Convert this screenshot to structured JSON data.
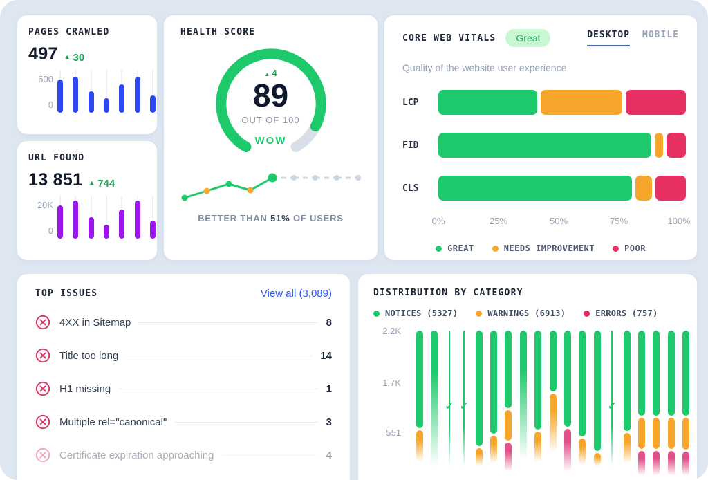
{
  "colors": {
    "green": "#1ec96b",
    "green_dark": "#1d9e55",
    "orange": "#f6a62b",
    "pink": "#e73062",
    "pink_soft": "#e0518a",
    "blue_bar": "#2e49f0",
    "purple_bar": "#9b16ea",
    "link_blue": "#2e5bf7",
    "gray_dot": "#ccd5e3",
    "gauge_rest": "#d9dfe8"
  },
  "pages_crawled": {
    "title": "PAGES CRAWLED",
    "value": "497",
    "delta": "30",
    "y_top": "600",
    "y_bottom": "0",
    "chart_data": {
      "type": "bar",
      "values": [
        460,
        505,
        300,
        200,
        395,
        505,
        240
      ],
      "ymax": 600,
      "color": "#2e49f0"
    }
  },
  "url_found": {
    "title": "URL FOUND",
    "value": "13 851",
    "delta": "744",
    "y_top": "20K",
    "y_bottom": "0",
    "chart_data": {
      "type": "bar",
      "values": [
        15600,
        17600,
        10000,
        6600,
        13600,
        17600,
        8400
      ],
      "ymax": 20000,
      "color": "#9b16ea"
    }
  },
  "health_score": {
    "title": "HEALTH SCORE",
    "delta": "4",
    "score": "89",
    "score_max": 100,
    "sub": "OUT OF 100",
    "mood": "WOW",
    "better_prefix": "BETTER THAN ",
    "better_strong": "51%",
    "better_suffix": " OF USERS",
    "chart_data": {
      "type": "line",
      "points": [
        {
          "x": 18,
          "y": 38,
          "c": "green"
        },
        {
          "x": 50,
          "y": 28,
          "c": "orange"
        },
        {
          "x": 82,
          "y": 18,
          "c": "green"
        },
        {
          "x": 113,
          "y": 27,
          "c": "orange"
        },
        {
          "x": 145,
          "y": 9,
          "c": "green",
          "big": true
        },
        {
          "x": 176,
          "y": 9,
          "c": "gray"
        },
        {
          "x": 207,
          "y": 9,
          "c": "gray"
        },
        {
          "x": 238,
          "y": 9,
          "c": "gray"
        },
        {
          "x": 269,
          "y": 9,
          "c": "gray"
        }
      ]
    }
  },
  "core_web_vitals": {
    "title": "CORE WEB VITALS",
    "badge": "Great",
    "tabs": [
      {
        "label": "DESKTOP",
        "active": true
      },
      {
        "label": "MOBILE",
        "active": false
      }
    ],
    "subtitle": "Quality of the website user experience",
    "chart_data": {
      "type": "bar",
      "stacked": true,
      "categories": [
        "LCP",
        "FID",
        "CLS"
      ],
      "series": [
        {
          "name": "GREAT",
          "values": [
            41,
            88.5,
            80.5
          ]
        },
        {
          "name": "NEEDS IMPROVEMENT",
          "values": [
            34,
            3.5,
            7
          ]
        },
        {
          "name": "POOR",
          "values": [
            25,
            8,
            12.5
          ]
        }
      ],
      "unit": "%",
      "xlim": [
        0,
        100
      ]
    },
    "rows": [
      {
        "label": "LCP",
        "segs": [
          {
            "c": "g",
            "w": 41
          },
          {
            "c": "o",
            "w": 34
          },
          {
            "c": "p",
            "w": 25
          }
        ]
      },
      {
        "label": "FID",
        "segs": [
          {
            "c": "g",
            "w": 88.5
          },
          {
            "c": "o",
            "w": 3.5
          },
          {
            "c": "p",
            "w": 8
          }
        ]
      },
      {
        "label": "CLS",
        "segs": [
          {
            "c": "g",
            "w": 80.5
          },
          {
            "c": "o",
            "w": 7
          },
          {
            "c": "p",
            "w": 12.5
          }
        ]
      }
    ],
    "ticks": [
      "0%",
      "25%",
      "50%",
      "75%",
      "100%"
    ],
    "legend": [
      {
        "label": "GREAT",
        "c": "g"
      },
      {
        "label": "NEEDS IMPROVEMENT",
        "c": "o"
      },
      {
        "label": "POOR",
        "c": "p"
      }
    ]
  },
  "top_issues": {
    "title": "TOP ISSUES",
    "view_all": "View all (3,089)",
    "items": [
      {
        "label": "4XX in Sitemap",
        "count": "8",
        "faded": false
      },
      {
        "label": "Title too long",
        "count": "14",
        "faded": false
      },
      {
        "label": "H1 missing",
        "count": "1",
        "faded": false
      },
      {
        "label": "Multiple rel=\"canonical\"",
        "count": "3",
        "faded": false
      },
      {
        "label": "Certificate expiration approaching",
        "count": "4",
        "faded": true
      }
    ]
  },
  "distribution": {
    "title": "DISTRIBUTION BY CATEGORY",
    "legend": [
      {
        "label": "NOTICES (5327)",
        "c": "g"
      },
      {
        "label": "WARNINGS (6913)",
        "c": "o"
      },
      {
        "label": "ERRORS (757)",
        "c": "p"
      }
    ],
    "y_labels": [
      {
        "text": "2.2K",
        "y": 0
      },
      {
        "text": "1.7K",
        "y": 75
      },
      {
        "text": "551",
        "y": 147
      }
    ],
    "chart_data": {
      "type": "bar",
      "ymax_label": "2.2K",
      "bars": [
        {
          "segs": [
            {
              "c": "g",
              "to": 0.72
            },
            {
              "c": "o",
              "to": 0.97,
              "fade": true
            }
          ]
        },
        {
          "segs": [
            {
              "c": "g",
              "to": 1.0,
              "fade": true
            }
          ]
        },
        {
          "thin": true,
          "check": 0.56
        },
        {
          "thin": true,
          "check": 0.56
        },
        {
          "segs": [
            {
              "c": "g",
              "to": 0.85
            },
            {
              "c": "o",
              "to": 1.0,
              "fade": true
            }
          ]
        },
        {
          "segs": [
            {
              "c": "g",
              "to": 0.76
            },
            {
              "c": "o",
              "to": 0.98,
              "fade": true
            }
          ]
        },
        {
          "segs": [
            {
              "c": "g",
              "to": 0.57
            },
            {
              "c": "o",
              "to": 0.81
            },
            {
              "c": "p",
              "to": 1.04,
              "fade": true
            }
          ]
        },
        {
          "segs": [
            {
              "c": "g",
              "to": 0.95,
              "fade": true
            }
          ]
        },
        {
          "segs": [
            {
              "c": "g",
              "to": 0.73
            },
            {
              "c": "o",
              "to": 0.97,
              "fade": true
            }
          ]
        },
        {
          "segs": [
            {
              "c": "g",
              "to": 0.45
            },
            {
              "c": "o",
              "to": 0.9,
              "fade": true
            }
          ]
        },
        {
          "segs": [
            {
              "c": "g",
              "to": 0.71
            },
            {
              "c": "p",
              "to": 1.04,
              "fade": true
            }
          ]
        },
        {
          "segs": [
            {
              "c": "g",
              "to": 0.78
            },
            {
              "c": "o",
              "to": 0.99,
              "fade": true
            }
          ]
        },
        {
          "segs": [
            {
              "c": "g",
              "to": 0.89
            },
            {
              "c": "o",
              "to": 1.0,
              "fade": true
            }
          ]
        },
        {
          "thin": true,
          "check": 0.56
        },
        {
          "segs": [
            {
              "c": "g",
              "to": 0.74
            },
            {
              "c": "o",
              "to": 0.98,
              "fade": true
            }
          ]
        },
        {
          "segs": [
            {
              "c": "g",
              "to": 0.63
            },
            {
              "c": "o",
              "to": 0.87
            },
            {
              "c": "p",
              "to": 1.07,
              "fade": true
            }
          ]
        },
        {
          "segs": [
            {
              "c": "g",
              "to": 0.63
            },
            {
              "c": "o",
              "to": 0.87
            },
            {
              "c": "p",
              "to": 1.07,
              "fade": true
            }
          ]
        },
        {
          "segs": [
            {
              "c": "g",
              "to": 0.63
            },
            {
              "c": "o",
              "to": 0.87
            },
            {
              "c": "p",
              "to": 1.07,
              "fade": true
            }
          ]
        },
        {
          "segs": [
            {
              "c": "g",
              "to": 0.63
            },
            {
              "c": "o",
              "to": 0.88
            },
            {
              "c": "p",
              "to": 1.07,
              "fade": true
            }
          ]
        }
      ]
    }
  }
}
